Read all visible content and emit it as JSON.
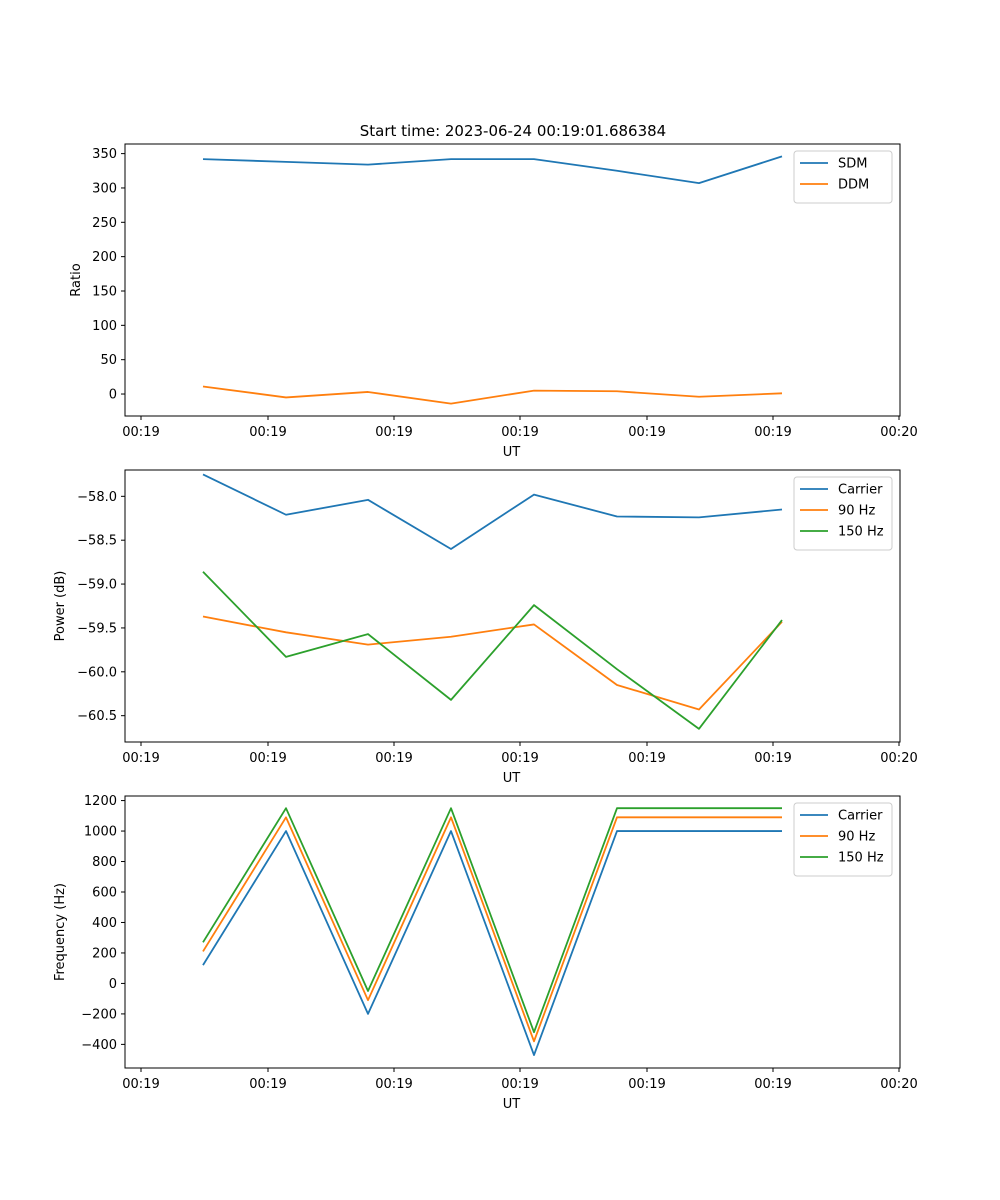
{
  "figure": {
    "title": "Start time: 2023-06-24 00:19:01.686384"
  },
  "chart_data": [
    {
      "type": "line",
      "xlabel": "UT",
      "ylabel": "Ratio",
      "x_tick_labels": [
        "00:19",
        "00:19",
        "00:19",
        "00:19",
        "00:19",
        "00:19",
        "00:20"
      ],
      "y_ticks": [
        0,
        50,
        100,
        150,
        200,
        250,
        300,
        350
      ],
      "y_tick_labels": [
        "0",
        "50",
        "100",
        "150",
        "200",
        "250",
        "300",
        "350"
      ],
      "ylim": [
        -32,
        364
      ],
      "grid": false,
      "legend": "top-right",
      "series": [
        {
          "name": "SDM",
          "color": "#1f77b4",
          "values": [
            342,
            338,
            334,
            342,
            342,
            325,
            307,
            346
          ]
        },
        {
          "name": "DDM",
          "color": "#ff7f0e",
          "values": [
            11,
            -5,
            3,
            -14,
            5,
            4,
            -4,
            1
          ]
        }
      ]
    },
    {
      "type": "line",
      "xlabel": "UT",
      "ylabel": "Power (dB)",
      "x_tick_labels": [
        "00:19",
        "00:19",
        "00:19",
        "00:19",
        "00:19",
        "00:19",
        "00:20"
      ],
      "y_ticks": [
        -60.5,
        -60.0,
        -59.5,
        -59.0,
        -58.5,
        -58.0
      ],
      "y_tick_labels": [
        "−60.5",
        "−60.0",
        "−59.5",
        "−59.0",
        "−58.5",
        "−58.0"
      ],
      "ylim": [
        -60.8,
        -57.7
      ],
      "grid": false,
      "legend": "top-right",
      "series": [
        {
          "name": "Carrier",
          "color": "#1f77b4",
          "values": [
            -57.75,
            -58.21,
            -58.04,
            -58.6,
            -57.98,
            -58.23,
            -58.24,
            -58.15
          ]
        },
        {
          "name": "90 Hz",
          "color": "#ff7f0e",
          "values": [
            -59.37,
            -59.55,
            -59.69,
            -59.6,
            -59.46,
            -60.15,
            -60.43,
            -59.43
          ]
        },
        {
          "name": "150 Hz",
          "color": "#2ca02c",
          "values": [
            -58.86,
            -59.83,
            -59.57,
            -60.32,
            -59.24,
            -59.97,
            -60.65,
            -59.41
          ]
        }
      ]
    },
    {
      "type": "line",
      "xlabel": "UT",
      "ylabel": "Frequency (Hz)",
      "x_tick_labels": [
        "00:19",
        "00:19",
        "00:19",
        "00:19",
        "00:19",
        "00:19",
        "00:20"
      ],
      "y_ticks": [
        -400,
        -200,
        0,
        200,
        400,
        600,
        800,
        1000,
        1200
      ],
      "y_tick_labels": [
        "−400",
        "−200",
        "0",
        "200",
        "400",
        "600",
        "800",
        "1000",
        "1200"
      ],
      "ylim": [
        -555,
        1230
      ],
      "grid": false,
      "legend": "top-right",
      "series": [
        {
          "name": "Carrier",
          "color": "#1f77b4",
          "values": [
            120,
            1000,
            -200,
            1000,
            -470,
            1000,
            1000,
            1000
          ]
        },
        {
          "name": "90 Hz",
          "color": "#ff7f0e",
          "values": [
            210,
            1090,
            -110,
            1090,
            -380,
            1090,
            1090,
            1090
          ]
        },
        {
          "name": "150 Hz",
          "color": "#2ca02c",
          "values": [
            270,
            1150,
            -50,
            1150,
            -320,
            1150,
            1150,
            1150
          ]
        }
      ]
    }
  ]
}
